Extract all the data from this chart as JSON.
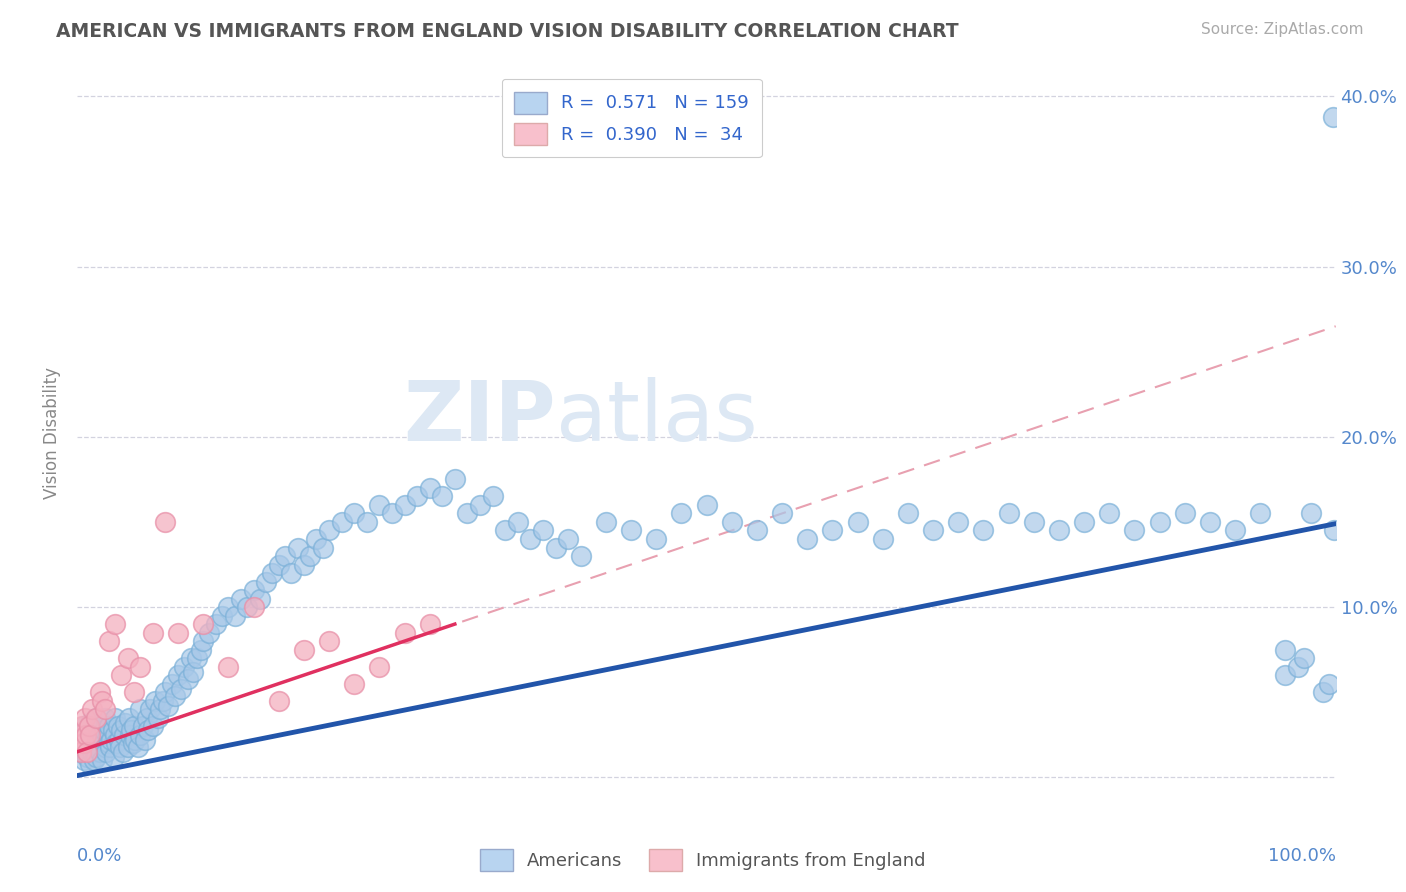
{
  "title": "AMERICAN VS IMMIGRANTS FROM ENGLAND VISION DISABILITY CORRELATION CHART",
  "source": "Source: ZipAtlas.com",
  "ylabel": "Vision Disability",
  "legend_label1": "Americans",
  "legend_label2": "Immigrants from England",
  "blue_scatter_color": "#a8c8e8",
  "blue_scatter_edge": "#7ab0d8",
  "pink_scatter_color": "#f4b0c0",
  "pink_scatter_edge": "#e890a8",
  "blue_line_color": "#2255aa",
  "pink_line_color": "#e03060",
  "pink_dash_color": "#e8a0b0",
  "background_color": "#ffffff",
  "grid_color": "#c8c8d8",
  "title_color": "#555555",
  "ytick_color": "#5588cc",
  "xlim": [
    0.0,
    1.0
  ],
  "ylim": [
    -0.015,
    0.42
  ],
  "blue_slope": 0.148,
  "blue_intercept": 0.001,
  "pink_slope_dash": 0.25,
  "pink_intercept_dash": 0.015,
  "pink_slope_solid": 0.25,
  "pink_intercept_solid": 0.015,
  "americans_x": [
    0.001,
    0.002,
    0.003,
    0.004,
    0.005,
    0.005,
    0.006,
    0.007,
    0.007,
    0.008,
    0.009,
    0.01,
    0.01,
    0.01,
    0.011,
    0.012,
    0.012,
    0.013,
    0.013,
    0.014,
    0.015,
    0.015,
    0.016,
    0.017,
    0.018,
    0.018,
    0.019,
    0.02,
    0.02,
    0.021,
    0.022,
    0.022,
    0.023,
    0.024,
    0.025,
    0.025,
    0.026,
    0.027,
    0.028,
    0.029,
    0.03,
    0.03,
    0.031,
    0.032,
    0.033,
    0.034,
    0.035,
    0.036,
    0.037,
    0.038,
    0.04,
    0.041,
    0.042,
    0.043,
    0.044,
    0.045,
    0.046,
    0.048,
    0.05,
    0.05,
    0.052,
    0.054,
    0.055,
    0.056,
    0.058,
    0.06,
    0.062,
    0.064,
    0.066,
    0.068,
    0.07,
    0.072,
    0.075,
    0.078,
    0.08,
    0.082,
    0.085,
    0.088,
    0.09,
    0.092,
    0.095,
    0.098,
    0.1,
    0.105,
    0.11,
    0.115,
    0.12,
    0.125,
    0.13,
    0.135,
    0.14,
    0.145,
    0.15,
    0.155,
    0.16,
    0.165,
    0.17,
    0.175,
    0.18,
    0.185,
    0.19,
    0.195,
    0.2,
    0.21,
    0.22,
    0.23,
    0.24,
    0.25,
    0.26,
    0.27,
    0.28,
    0.29,
    0.3,
    0.31,
    0.32,
    0.33,
    0.34,
    0.35,
    0.36,
    0.37,
    0.38,
    0.39,
    0.4,
    0.42,
    0.44,
    0.46,
    0.48,
    0.5,
    0.52,
    0.54,
    0.56,
    0.58,
    0.6,
    0.62,
    0.64,
    0.66,
    0.68,
    0.7,
    0.72,
    0.74,
    0.76,
    0.78,
    0.8,
    0.82,
    0.84,
    0.86,
    0.88,
    0.9,
    0.92,
    0.94,
    0.96,
    0.98,
    0.99,
    0.995,
    0.998,
    0.999,
    0.96,
    0.97,
    0.975
  ],
  "americans_y": [
    0.015,
    0.025,
    0.018,
    0.022,
    0.01,
    0.03,
    0.02,
    0.015,
    0.028,
    0.012,
    0.025,
    0.008,
    0.02,
    0.032,
    0.018,
    0.015,
    0.025,
    0.01,
    0.022,
    0.028,
    0.012,
    0.035,
    0.02,
    0.018,
    0.025,
    0.015,
    0.03,
    0.01,
    0.022,
    0.028,
    0.018,
    0.035,
    0.015,
    0.025,
    0.02,
    0.03,
    0.018,
    0.022,
    0.028,
    0.012,
    0.025,
    0.035,
    0.02,
    0.03,
    0.022,
    0.018,
    0.028,
    0.015,
    0.025,
    0.032,
    0.018,
    0.035,
    0.025,
    0.028,
    0.02,
    0.03,
    0.022,
    0.018,
    0.025,
    0.04,
    0.03,
    0.022,
    0.035,
    0.028,
    0.04,
    0.03,
    0.045,
    0.035,
    0.04,
    0.045,
    0.05,
    0.042,
    0.055,
    0.048,
    0.06,
    0.052,
    0.065,
    0.058,
    0.07,
    0.062,
    0.07,
    0.075,
    0.08,
    0.085,
    0.09,
    0.095,
    0.1,
    0.095,
    0.105,
    0.1,
    0.11,
    0.105,
    0.115,
    0.12,
    0.125,
    0.13,
    0.12,
    0.135,
    0.125,
    0.13,
    0.14,
    0.135,
    0.145,
    0.15,
    0.155,
    0.15,
    0.16,
    0.155,
    0.16,
    0.165,
    0.17,
    0.165,
    0.175,
    0.155,
    0.16,
    0.165,
    0.145,
    0.15,
    0.14,
    0.145,
    0.135,
    0.14,
    0.13,
    0.15,
    0.145,
    0.14,
    0.155,
    0.16,
    0.15,
    0.145,
    0.155,
    0.14,
    0.145,
    0.15,
    0.14,
    0.155,
    0.145,
    0.15,
    0.145,
    0.155,
    0.15,
    0.145,
    0.15,
    0.155,
    0.145,
    0.15,
    0.155,
    0.15,
    0.145,
    0.155,
    0.06,
    0.155,
    0.05,
    0.055,
    0.388,
    0.145,
    0.075,
    0.065,
    0.07
  ],
  "england_x": [
    0.001,
    0.002,
    0.003,
    0.004,
    0.005,
    0.006,
    0.007,
    0.008,
    0.009,
    0.01,
    0.012,
    0.015,
    0.018,
    0.02,
    0.022,
    0.025,
    0.03,
    0.035,
    0.04,
    0.045,
    0.05,
    0.06,
    0.07,
    0.08,
    0.1,
    0.12,
    0.14,
    0.16,
    0.18,
    0.2,
    0.22,
    0.24,
    0.26,
    0.28
  ],
  "england_y": [
    0.02,
    0.025,
    0.015,
    0.03,
    0.02,
    0.035,
    0.025,
    0.015,
    0.03,
    0.025,
    0.04,
    0.035,
    0.05,
    0.045,
    0.04,
    0.08,
    0.09,
    0.06,
    0.07,
    0.05,
    0.065,
    0.085,
    0.15,
    0.085,
    0.09,
    0.065,
    0.1,
    0.045,
    0.075,
    0.08,
    0.055,
    0.065,
    0.085,
    0.09
  ]
}
